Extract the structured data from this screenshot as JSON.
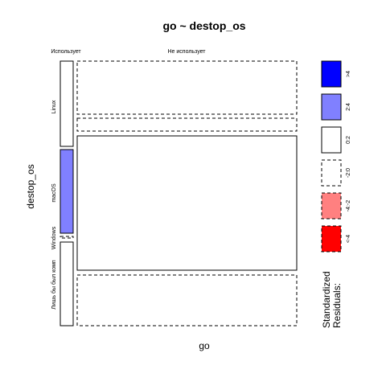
{
  "chart_data": {
    "type": "mosaic",
    "title": "go ~ destop_os",
    "xlabel": "go",
    "ylabel": "destop_os",
    "x_categories": [
      "Использует",
      "Не использует"
    ],
    "y_categories": [
      "Linux",
      "macOS",
      "Windows",
      "Лишь бы был комп"
    ],
    "cells": [
      {
        "x": "Использует",
        "y": "Linux",
        "residual_class": "0:2"
      },
      {
        "x": "Не использует",
        "y": "Linux",
        "residual_class": "-2:0"
      },
      {
        "x": "Использует",
        "y": "macOS",
        "residual_class": "2:4"
      },
      {
        "x": "Не использует",
        "y": "macOS",
        "residual_class": "-2:0"
      },
      {
        "x": "Использует",
        "y": "Windows",
        "residual_class": "-2:0"
      },
      {
        "x": "Не использует",
        "y": "Windows",
        "residual_class": "0:2"
      },
      {
        "x": "Использует",
        "y": "Лишь бы был комп",
        "residual_class": "0:2"
      },
      {
        "x": "Не использует",
        "y": "Лишь бы был комп",
        "residual_class": "-2:0"
      }
    ],
    "legend": {
      "title_lines": [
        "Standardized",
        "Residuals:"
      ],
      "items": [
        {
          "label": ">4",
          "fill": "#0000ff",
          "dashed": false
        },
        {
          "label": "2:4",
          "fill": "#8080ff",
          "dashed": false
        },
        {
          "label": "0:2",
          "fill": "#ffffff",
          "dashed": false
        },
        {
          "label": "-2:0",
          "fill": "#ffffff",
          "dashed": true
        },
        {
          "label": "-4:-2",
          "fill": "#ff8080",
          "dashed": true
        },
        {
          "label": "<-4",
          "fill": "#ff0000",
          "dashed": true
        }
      ]
    }
  },
  "colors": {
    "background": "#ffffff",
    "stroke": "#000000"
  }
}
